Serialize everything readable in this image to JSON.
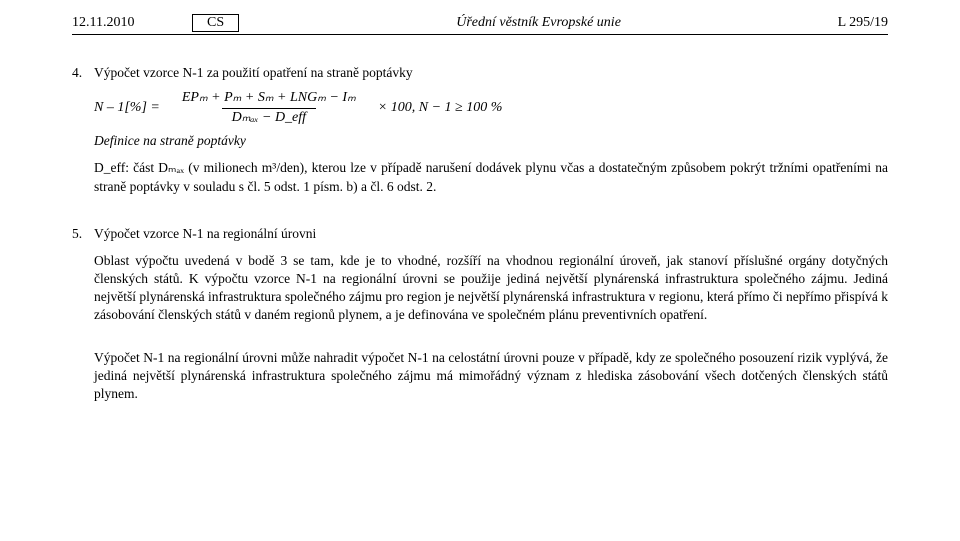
{
  "header": {
    "date": "12.11.2010",
    "lang": "CS",
    "title": "Úřední věstník Evropské unie",
    "pageno": "L 295/19"
  },
  "sec4": {
    "num": "4.",
    "title": "Výpočet vzorce N-1 za použití opatření na straně poptávky",
    "formula": {
      "lhs": "N – 1[%]  =",
      "numerator": "EPₘ  +  Pₘ  +  Sₘ  +  LNGₘ − Iₘ",
      "denominator": "Dₘₐₓ − D_eff",
      "rhs": "×  100, N − 1 ≥ 100 %"
    },
    "defline": "Definice na straně poptávky",
    "defpara": "D_eff: část Dₘₐₓ (v milionech m³/den), kterou lze v případě narušení dodávek plynu včas a dostatečným způsobem pokrýt tržními opatřeními na straně poptávky v souladu s čl. 5 odst. 1 písm. b) a čl. 6 odst. 2."
  },
  "sec5": {
    "num": "5.",
    "title": "Výpočet vzorce N-1 na regionální úrovni",
    "para1": "Oblast výpočtu uvedená v bodě 3 se tam, kde je to vhodné, rozšíří na vhodnou regionální úroveň, jak stanoví příslušné orgány dotyčných členských států. K výpočtu vzorce N-1 na regionální úrovni se použije jediná největší plynárenská infrastruktura společného zájmu. Jediná největší plynárenská infrastruktura společného zájmu pro region je největší plynárenská infrastruktura v regionu, která přímo či nepřímo přispívá k zásobování členských států v daném regionů plynem, a je definována ve společném plánu preventivních opatření.",
    "para2": "Výpočet N-1 na regionální úrovni může nahradit výpočet N-1 na celostátní úrovni pouze v případě, kdy ze společného posouzení rizik vyplývá, že jediná největší plynárenská infrastruktura společného zájmu má mimořádný význam z hlediska zásobování všech dotčených členských států plynem."
  }
}
